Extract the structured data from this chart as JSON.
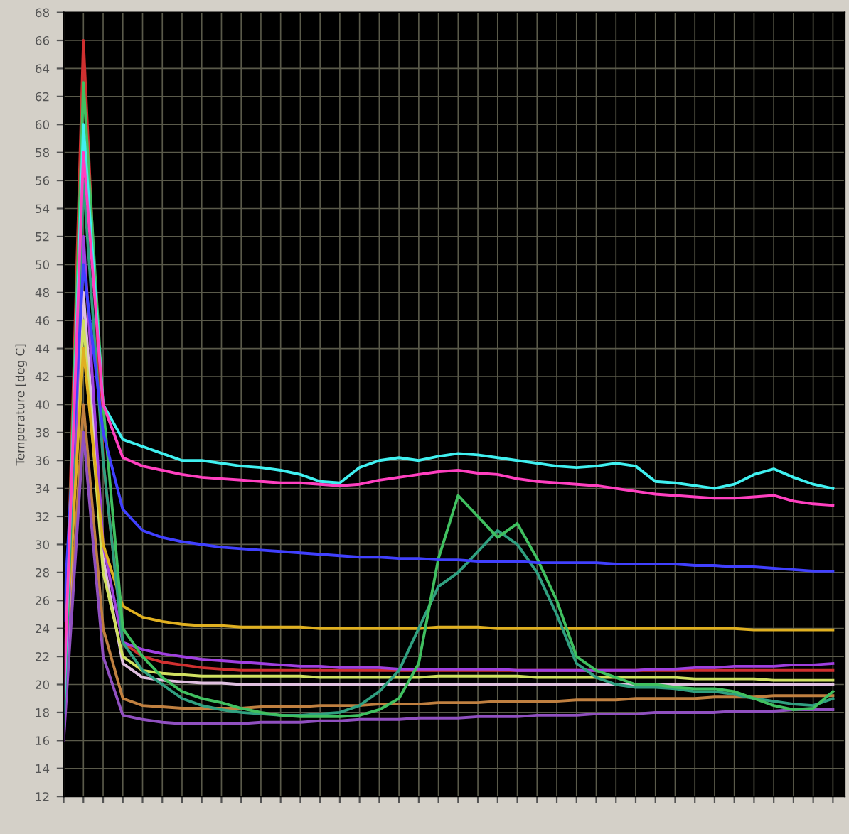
{
  "chart_data": {
    "type": "line",
    "ylabel": "Temperature [deg C]",
    "categories": [
      null,
      null,
      null,
      null,
      null,
      null,
      null,
      null,
      null,
      null,
      null,
      null,
      null,
      null,
      null,
      null,
      null,
      null,
      null,
      null,
      null,
      null,
      null,
      null,
      null,
      null,
      null,
      null,
      null,
      null,
      null,
      null,
      null,
      null,
      null,
      null,
      null,
      null,
      null,
      null
    ],
    "ylim": [
      12,
      68
    ],
    "yticks": [
      12,
      14,
      16,
      18,
      20,
      22,
      24,
      26,
      28,
      30,
      32,
      34,
      36,
      38,
      40,
      42,
      44,
      46,
      48,
      50,
      52,
      54,
      56,
      58,
      60,
      62,
      64,
      66,
      68
    ],
    "grid": true,
    "legend": false,
    "marker": "none",
    "line_style": "solid",
    "series": [
      {
        "color": "#d03030",
        "values": [
          18,
          66,
          36,
          23,
          22,
          21.6,
          21.4,
          21.2,
          21.1,
          21,
          21,
          21,
          21,
          21,
          21,
          21,
          21,
          21,
          21,
          21,
          21,
          21,
          21,
          21,
          21,
          21,
          21,
          21,
          21,
          21,
          21,
          21,
          21,
          21,
          21,
          21,
          21,
          21,
          21,
          21
        ]
      },
      {
        "color": "#c08040",
        "values": [
          17,
          40,
          24,
          19,
          18.5,
          18.4,
          18.3,
          18.3,
          18.3,
          18.3,
          18.4,
          18.4,
          18.4,
          18.5,
          18.5,
          18.5,
          18.6,
          18.6,
          18.6,
          18.7,
          18.7,
          18.7,
          18.8,
          18.8,
          18.8,
          18.8,
          18.9,
          18.9,
          18.9,
          19,
          19,
          19,
          19,
          19.1,
          19.1,
          19.1,
          19.2,
          19.2,
          19.2,
          19.2
        ]
      },
      {
        "color": "#9050c0",
        "values": [
          16,
          38,
          22,
          17.8,
          17.5,
          17.3,
          17.2,
          17.2,
          17.2,
          17.2,
          17.3,
          17.3,
          17.3,
          17.4,
          17.4,
          17.5,
          17.5,
          17.5,
          17.6,
          17.6,
          17.6,
          17.7,
          17.7,
          17.7,
          17.8,
          17.8,
          17.8,
          17.9,
          17.9,
          17.9,
          18,
          18,
          18,
          18,
          18.1,
          18.1,
          18.1,
          18.2,
          18.2,
          18.2
        ]
      },
      {
        "color": "#e0c0e0",
        "values": [
          17,
          48,
          29,
          21.5,
          20.5,
          20.3,
          20.2,
          20.1,
          20.1,
          20,
          20,
          20,
          20,
          20,
          20,
          20,
          20,
          20,
          20,
          20,
          20,
          20,
          20,
          20,
          20,
          20,
          20,
          20,
          20,
          20,
          20,
          20,
          20,
          20,
          20,
          20,
          20,
          20,
          20,
          20
        ]
      },
      {
        "color": "#d0e060",
        "values": [
          19,
          46,
          28,
          22,
          21,
          20.8,
          20.7,
          20.6,
          20.6,
          20.6,
          20.6,
          20.6,
          20.6,
          20.5,
          20.5,
          20.5,
          20.5,
          20.5,
          20.5,
          20.6,
          20.6,
          20.6,
          20.6,
          20.6,
          20.5,
          20.5,
          20.5,
          20.5,
          20.5,
          20.5,
          20.5,
          20.5,
          20.4,
          20.4,
          20.4,
          20.4,
          20.3,
          20.3,
          20.3,
          20.3
        ]
      },
      {
        "color": "#a040e0",
        "values": [
          16,
          52,
          30,
          23,
          22.5,
          22.2,
          22,
          21.8,
          21.7,
          21.6,
          21.5,
          21.4,
          21.3,
          21.3,
          21.2,
          21.2,
          21.2,
          21.1,
          21.1,
          21.1,
          21.1,
          21.1,
          21.1,
          21,
          21,
          21,
          21,
          21,
          21,
          21,
          21.1,
          21.1,
          21.2,
          21.2,
          21.3,
          21.3,
          21.3,
          21.4,
          21.4,
          21.5
        ]
      },
      {
        "color": "#e0b020",
        "values": [
          20,
          44,
          30,
          25.6,
          24.8,
          24.5,
          24.3,
          24.2,
          24.2,
          24.1,
          24.1,
          24.1,
          24.1,
          24,
          24,
          24,
          24,
          24,
          24,
          24.1,
          24.1,
          24.1,
          24,
          24,
          24,
          24,
          24,
          24,
          24,
          24,
          24,
          24,
          24,
          24,
          24,
          23.9,
          23.9,
          23.9,
          23.9,
          23.9
        ]
      },
      {
        "color": "#30a080",
        "values": [
          17,
          56,
          36,
          23,
          21,
          20,
          19,
          18.5,
          18.2,
          18,
          17.9,
          17.8,
          17.8,
          17.9,
          18,
          18.5,
          19.5,
          21,
          24,
          27,
          28,
          29.5,
          31,
          30,
          28,
          25,
          21.5,
          20.5,
          20,
          19.8,
          19.8,
          19.7,
          19.5,
          19.5,
          19.3,
          19,
          18.8,
          18.6,
          18.5,
          19
        ]
      },
      {
        "color": "#40c060",
        "values": [
          18,
          63,
          40,
          24,
          22,
          20.5,
          19.5,
          19,
          18.7,
          18.3,
          18,
          17.8,
          17.7,
          17.7,
          17.7,
          17.8,
          18.2,
          19,
          21.5,
          29,
          33.5,
          32,
          30.5,
          31.5,
          29,
          26,
          22,
          21,
          20.5,
          20,
          20,
          19.8,
          19.7,
          19.7,
          19.5,
          19,
          18.5,
          18.2,
          18.3,
          19.5
        ]
      },
      {
        "color": "#4040ff",
        "values": [
          24.6,
          50,
          38,
          32.5,
          31,
          30.5,
          30.2,
          30,
          29.8,
          29.7,
          29.6,
          29.5,
          29.4,
          29.3,
          29.2,
          29.1,
          29.1,
          29,
          29,
          28.9,
          28.9,
          28.8,
          28.8,
          28.8,
          28.7,
          28.7,
          28.7,
          28.7,
          28.6,
          28.6,
          28.6,
          28.6,
          28.5,
          28.5,
          28.4,
          28.4,
          28.3,
          28.2,
          28.1,
          28.1
        ]
      },
      {
        "color": "#40f0f0",
        "values": [
          18,
          60,
          40,
          37.5,
          37,
          36.5,
          36,
          36,
          35.8,
          35.6,
          35.5,
          35.3,
          35,
          34.5,
          34.4,
          35.5,
          36,
          36.2,
          36,
          36.3,
          36.5,
          36.4,
          36.2,
          36,
          35.8,
          35.6,
          35.5,
          35.6,
          35.8,
          35.6,
          34.5,
          34.4,
          34.2,
          34,
          34.3,
          35,
          35.4,
          34.8,
          34.3,
          34
        ]
      },
      {
        "color": "#ff40c0",
        "values": [
          19,
          58,
          40,
          36.2,
          35.6,
          35.3,
          35,
          34.8,
          34.7,
          34.6,
          34.5,
          34.4,
          34.4,
          34.3,
          34.2,
          34.3,
          34.6,
          34.8,
          35,
          35.2,
          35.3,
          35.1,
          35,
          34.7,
          34.5,
          34.4,
          34.3,
          34.2,
          34,
          33.8,
          33.6,
          33.5,
          33.4,
          33.3,
          33.3,
          33.4,
          33.5,
          33.1,
          32.9,
          32.8
        ]
      }
    ]
  }
}
